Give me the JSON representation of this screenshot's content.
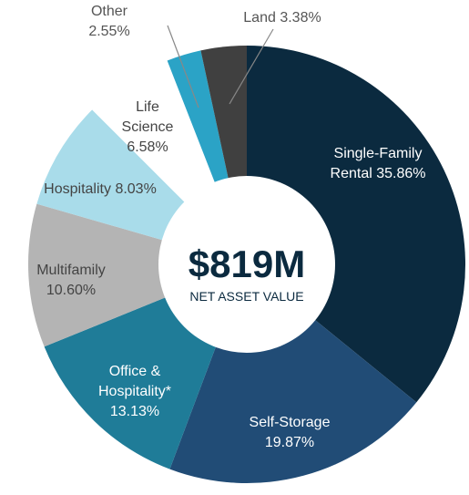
{
  "chart_data": {
    "type": "donut",
    "center_value": "$819M",
    "center_label": "NET ASSET VALUE",
    "categories": [
      "Single-Family Rental",
      "Self-Storage",
      "Office & Hospitality*",
      "Multifamily",
      "Hospitality",
      "Life Science",
      "Other",
      "Land"
    ],
    "values": [
      35.86,
      19.87,
      13.13,
      10.6,
      8.03,
      6.58,
      2.55,
      3.38
    ],
    "value_labels": [
      "35.86%",
      "19.87%",
      "13.13%",
      "10.60%",
      "8.03%",
      "6.58%",
      "2.55%",
      "3.38%"
    ],
    "colors": [
      "#0b2a3f",
      "#214c76",
      "#1f7c98",
      "#b4b4b4",
      "#a9dcea",
      "#ffffff",
      "#2ba3c6",
      "#404040"
    ]
  }
}
